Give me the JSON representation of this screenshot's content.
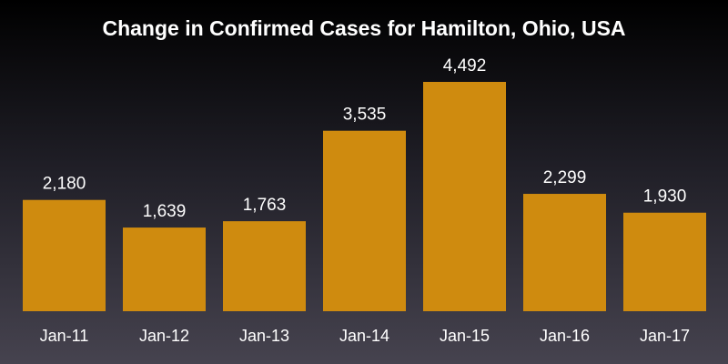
{
  "colors": {
    "bar": "#cf8b0f",
    "text": "#ffffff",
    "background_top": "#000000",
    "background_bottom": "#46434f"
  },
  "chart_data": {
    "type": "bar",
    "title": "Change in Confirmed Cases for Hamilton, Ohio, USA",
    "xlabel": "",
    "ylabel": "",
    "categories": [
      "Jan-11",
      "Jan-12",
      "Jan-13",
      "Jan-14",
      "Jan-15",
      "Jan-16",
      "Jan-17"
    ],
    "values": [
      2180,
      1639,
      1763,
      3535,
      4492,
      2299,
      1930
    ],
    "value_labels": [
      "2,180",
      "1,639",
      "1,763",
      "3,535",
      "4,492",
      "2,299",
      "1,930"
    ],
    "ylim": [
      0,
      4492
    ],
    "grid": false,
    "legend": "none"
  }
}
